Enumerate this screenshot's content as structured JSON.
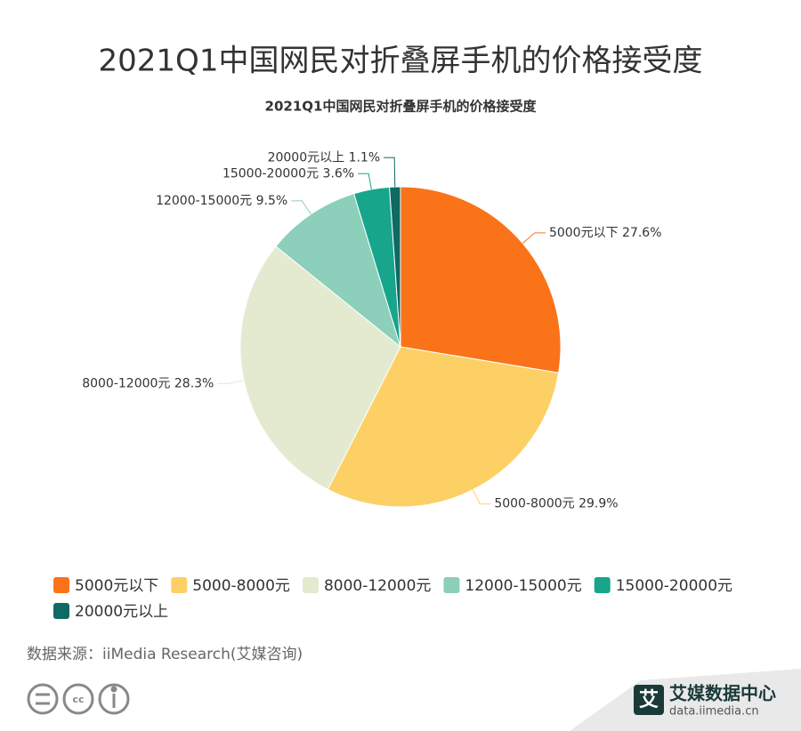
{
  "header": {
    "title": "2021Q1中国网民对折叠屏手机的价格接受度"
  },
  "chart_data": {
    "type": "pie",
    "title": "2021Q1中国网民对折叠屏手机的价格接受度",
    "categories": [
      "5000元以下",
      "5000-8000元",
      "8000-12000元",
      "12000-15000元",
      "15000-20000元",
      "20000元以上"
    ],
    "values": [
      27.6,
      29.9,
      28.3,
      9.5,
      3.6,
      1.1
    ],
    "value_labels": [
      "27.6%",
      "29.9%",
      "28.3%",
      "9.5%",
      "3.6%",
      "1.1%"
    ],
    "colors": [
      "#fa7319",
      "#fdd065",
      "#e3ead0",
      "#8ccfbb",
      "#17a58c",
      "#0e6a63"
    ],
    "legend": "bottom"
  },
  "footer": {
    "source": "数据来源：iiMedia Research(艾媒咨询)",
    "brand": "艾媒数据中心",
    "url": "data.iimedia.cn"
  }
}
